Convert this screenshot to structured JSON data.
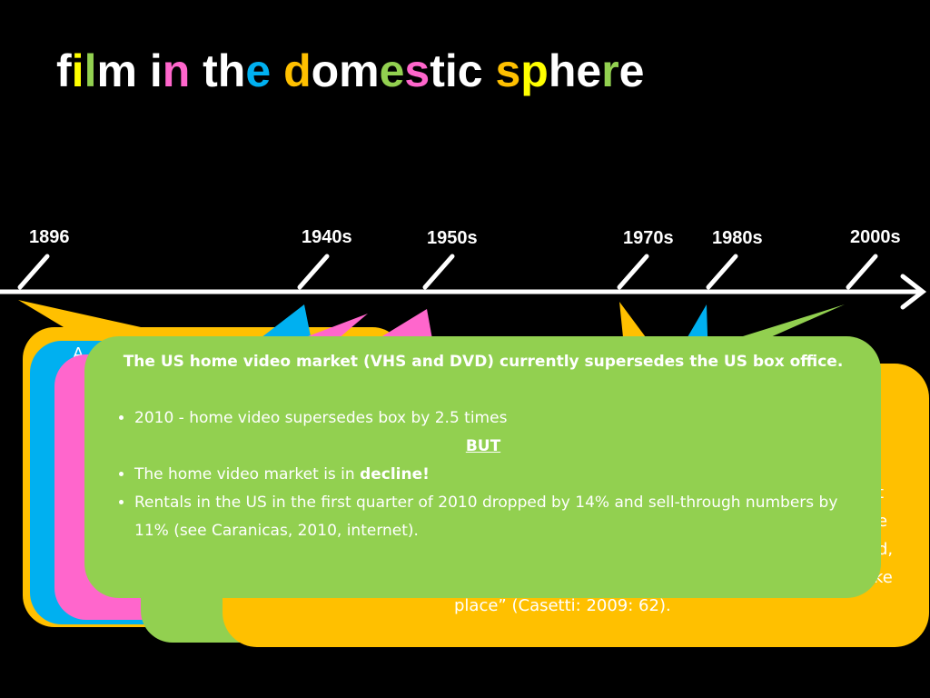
{
  "header": {
    "title_segments": [
      {
        "text": "f",
        "color": "#ffffff"
      },
      {
        "text": "i",
        "color": "#ffff00"
      },
      {
        "text": "l",
        "color": "#92d050"
      },
      {
        "text": "m i",
        "color": "#ffffff"
      },
      {
        "text": "n",
        "color": "#ff66cc"
      },
      {
        "text": " th",
        "color": "#ffffff"
      },
      {
        "text": "e",
        "color": "#00b0f0"
      },
      {
        "text": " d",
        "color": "#ffc000"
      },
      {
        "text": "om",
        "color": "#ffffff"
      },
      {
        "text": "e",
        "color": "#92d050"
      },
      {
        "text": "s",
        "color": "#ff66cc"
      },
      {
        "text": "tic ",
        "color": "#ffffff"
      },
      {
        "text": "s",
        "color": "#ffc000"
      },
      {
        "text": "p",
        "color": "#ffff00"
      },
      {
        "text": "he",
        "color": "#ffffff"
      },
      {
        "text": "r",
        "color": "#92d050"
      },
      {
        "text": "e",
        "color": "#ffffff"
      }
    ]
  },
  "timeline": {
    "labels": [
      "1896",
      "1940s",
      "1950s",
      "1970s",
      "1980s",
      "2000s"
    ]
  },
  "background_fragments": [
    "A",
    "t",
    "e",
    "d,",
    "ke",
    "place” (Casetti: 2009: 62)."
  ],
  "front_box": {
    "heading": "The US home video market (VHS and DVD) currently supersedes the US box office.",
    "bullet_1": "2010  - home video supersedes box by 2.5 times",
    "emphasis": "BUT",
    "bullet_2_text": "The home video market is in ",
    "bullet_2_bold": "decline!",
    "bullet_3": "Rentals in the US in the first quarter of 2010 dropped by 14% and sell-through numbers by 11% (see Caranicas, 2010, internet)."
  }
}
